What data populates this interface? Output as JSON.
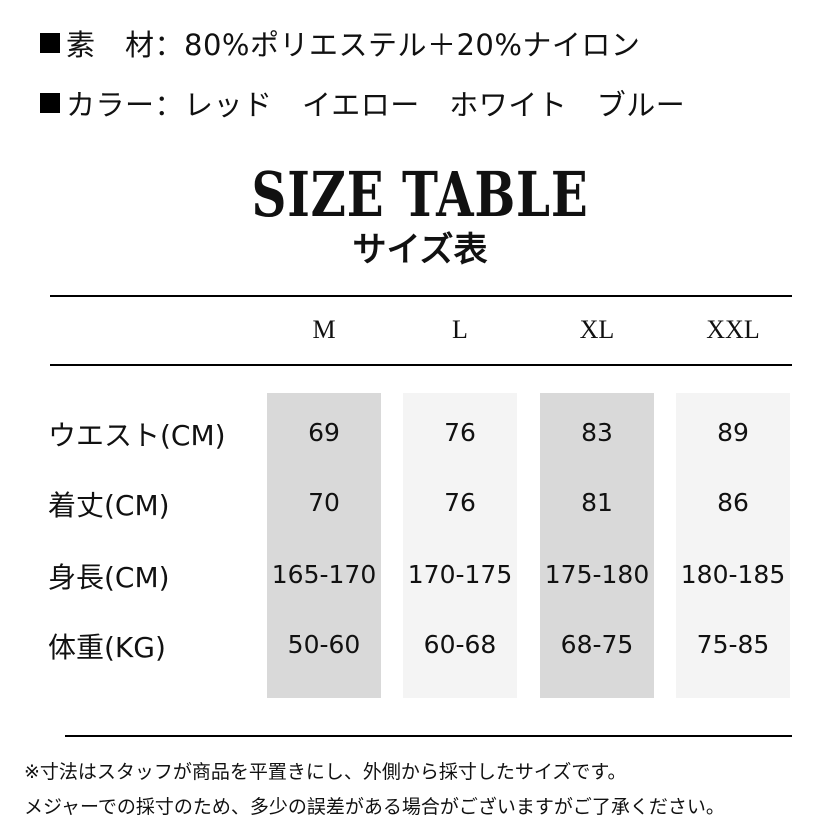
{
  "specs": {
    "material": "素　材：80%ポリエステル＋20%ナイロン",
    "color": "カラー：レッド　イエロー　ホワイト　ブルー"
  },
  "title": "SIZE TABLE",
  "subtitle": "サイズ表",
  "table": {
    "sizes": [
      "M",
      "L",
      "XL",
      "XXL"
    ],
    "rows": [
      {
        "label": "ウエスト(CM)",
        "values": [
          "69",
          "76",
          "83",
          "89"
        ]
      },
      {
        "label": "着丈(CM)",
        "values": [
          "70",
          "76",
          "81",
          "86"
        ]
      },
      {
        "label": "身長(CM)",
        "values": [
          "165-170",
          "170-175",
          "175-180",
          "180-185"
        ]
      },
      {
        "label": "体重(KG)",
        "values": [
          "50-60",
          "60-68",
          "68-75",
          "75-85"
        ]
      }
    ]
  },
  "notes": [
    "※寸法はスタッフが商品を平置きにし、外側から採寸したサイズです。",
    "メジャーでの採寸のため、多少の誤差がある場合がございますがご了承ください。"
  ]
}
